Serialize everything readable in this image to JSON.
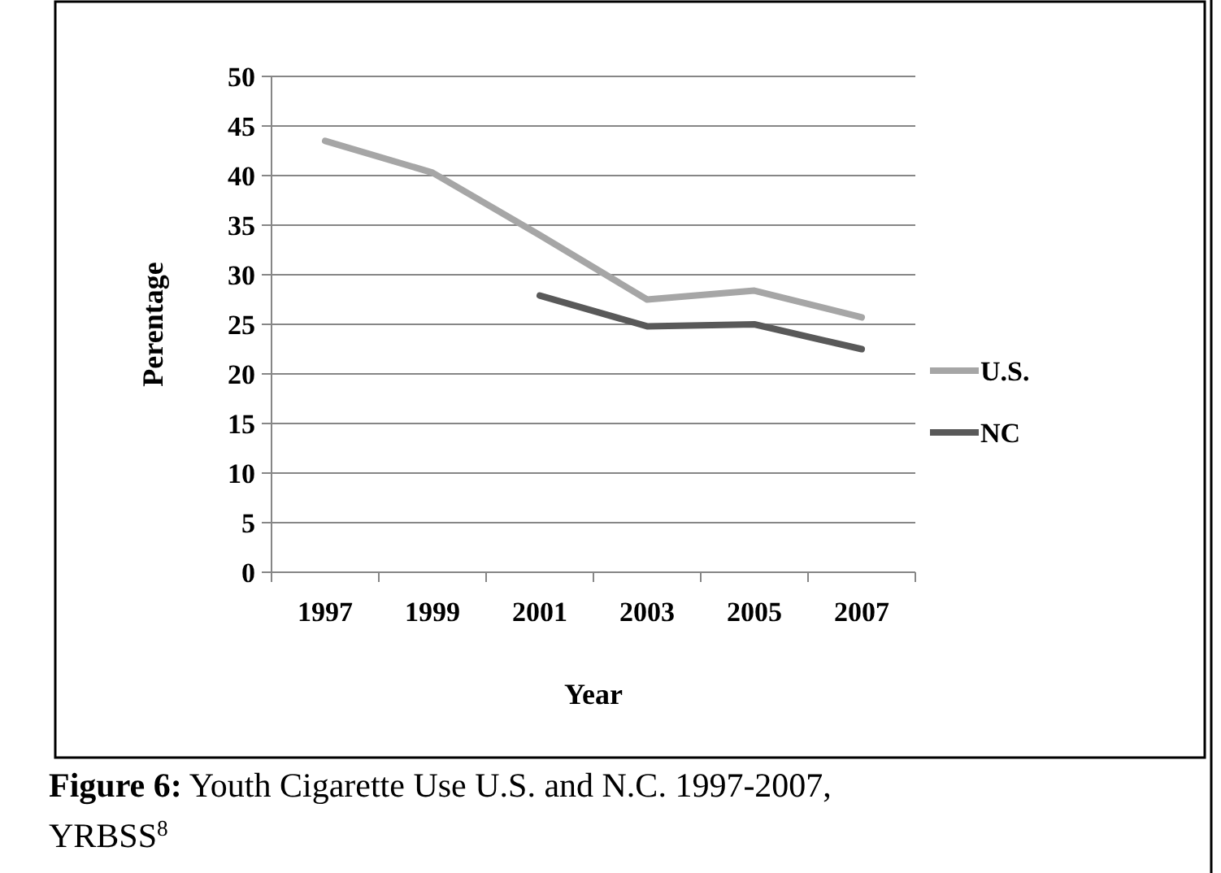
{
  "chart_data": {
    "type": "line",
    "xlabel": "Year",
    "ylabel": "Perentage",
    "categories": [
      "1997",
      "1999",
      "2001",
      "2003",
      "2005",
      "2007"
    ],
    "series": [
      {
        "name": "U.S.",
        "color": "#a6a6a6",
        "values": [
          43.5,
          40.3,
          34.0,
          27.5,
          28.4,
          25.7
        ]
      },
      {
        "name": "NC",
        "color": "#595959",
        "values": [
          null,
          null,
          27.9,
          24.8,
          25.0,
          22.5
        ]
      }
    ],
    "ylim": [
      0,
      50
    ],
    "yticks": [
      0,
      5,
      10,
      15,
      20,
      25,
      30,
      35,
      40,
      45,
      50
    ],
    "grid": "y",
    "legend": "right",
    "marker": "none",
    "line_style": "solid",
    "annotations": [
      "Figure 6: Youth Cigarette Use U.S. and N.C. 1997-2007, YRBSS$^{8}$"
    ]
  }
}
